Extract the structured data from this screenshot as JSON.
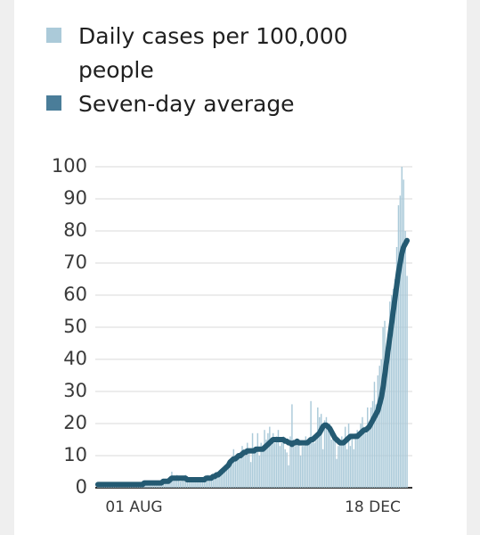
{
  "chart_data": {
    "type": "bar",
    "categories": [
      null,
      null,
      null,
      null,
      null,
      null,
      null,
      null,
      null,
      null,
      null,
      null,
      null,
      null,
      null,
      null,
      null,
      null,
      null,
      null,
      null,
      "01 AUG",
      null,
      null,
      null,
      null,
      null,
      null,
      null,
      null,
      null,
      null,
      null,
      null,
      null,
      null,
      null,
      null,
      null,
      null,
      null,
      null,
      null,
      null,
      null,
      null,
      null,
      null,
      null,
      null,
      null,
      null,
      null,
      null,
      null,
      null,
      null,
      null,
      null,
      null,
      null,
      null,
      null,
      null,
      null,
      null,
      null,
      null,
      null,
      null,
      null,
      null,
      null,
      null,
      null,
      null,
      null,
      null,
      null,
      null,
      null,
      null,
      null,
      null,
      null,
      null,
      null,
      null,
      null,
      null,
      null,
      null,
      null,
      null,
      null,
      null,
      null,
      null,
      null,
      null,
      null,
      null,
      null,
      null,
      null,
      null,
      null,
      null,
      null,
      null,
      null,
      null,
      null,
      null,
      null,
      null,
      null,
      null,
      null,
      null,
      null,
      null,
      null,
      null,
      null,
      null,
      null,
      null,
      null,
      null,
      null,
      null,
      null,
      null,
      null,
      null,
      null,
      null,
      null,
      null,
      null,
      null,
      null,
      null,
      null,
      null,
      null,
      null,
      null,
      null,
      null,
      null,
      null,
      null,
      null,
      null,
      null,
      null,
      null,
      null,
      "18 DEC",
      null,
      null,
      null,
      null,
      null,
      null,
      null,
      null,
      null,
      null,
      null,
      null,
      null,
      null,
      null,
      null,
      null,
      null,
      null,
      null
    ],
    "series": [
      {
        "name": "Daily cases per 100,000 people",
        "color": "#abcad9",
        "type": "bar",
        "values": [
          1,
          0.5,
          1,
          1,
          0.5,
          1,
          1,
          1,
          0.5,
          1,
          1,
          1,
          0.5,
          1,
          1,
          1,
          1,
          0.5,
          1,
          1,
          1,
          1,
          1,
          1,
          1,
          1,
          1,
          2,
          1.5,
          1,
          1.5,
          2,
          1.5,
          1,
          1.5,
          1.5,
          2,
          1.5,
          2,
          2.5,
          2,
          2,
          3,
          5,
          3,
          3,
          4,
          3,
          2,
          3,
          3,
          4,
          2,
          2,
          3,
          3,
          2,
          2,
          3,
          3,
          2,
          3,
          3,
          3,
          4,
          3,
          3,
          4,
          3,
          5,
          4,
          5,
          6,
          6,
          7,
          6,
          8,
          9,
          8,
          12,
          10,
          9,
          10,
          11,
          13,
          12,
          10,
          14,
          12,
          8,
          17,
          12,
          11,
          17,
          10,
          14,
          12,
          18,
          15,
          17,
          19,
          15,
          17,
          14,
          16,
          18,
          13,
          14,
          16,
          12,
          11,
          7,
          16,
          26,
          15,
          13,
          15,
          14,
          10,
          13,
          13,
          16,
          14,
          15,
          27,
          16,
          14,
          15,
          25,
          22,
          23,
          12,
          21,
          22,
          18,
          20,
          15,
          17,
          16,
          9,
          13,
          14,
          16,
          15,
          19,
          12,
          20,
          13,
          16,
          12,
          17,
          18,
          16,
          20,
          22,
          19,
          17,
          25,
          20,
          25,
          27,
          33,
          26,
          35,
          38,
          40,
          50,
          52,
          44,
          42,
          58,
          60,
          62,
          65,
          75,
          88,
          91,
          100,
          96,
          80,
          66
        ]
      },
      {
        "name": "Seven-day average",
        "color": "#245a72",
        "type": "line",
        "values": [
          1,
          1,
          1,
          1,
          1,
          1,
          1,
          1,
          1,
          1,
          1,
          1,
          1,
          1,
          1,
          1,
          1,
          1,
          1,
          1,
          1,
          1,
          1,
          1,
          1,
          1,
          1,
          1.5,
          1.5,
          1.5,
          1.5,
          1.5,
          1.5,
          1.5,
          1.5,
          1.5,
          1.5,
          1.5,
          2,
          2,
          2,
          2,
          2.5,
          3,
          3,
          3,
          3,
          3,
          3,
          3,
          3,
          3,
          2.5,
          2.5,
          2.5,
          2.5,
          2.5,
          2.5,
          2.5,
          2.5,
          2.5,
          2.5,
          2.5,
          3,
          3,
          3,
          3,
          3.5,
          3.5,
          4,
          4,
          4.5,
          5,
          5.5,
          6,
          6.5,
          7,
          8,
          8.5,
          9,
          9,
          9.5,
          10,
          10,
          10.5,
          11,
          11,
          11.5,
          11.5,
          11.5,
          11.5,
          11.5,
          12,
          12,
          12,
          12,
          12,
          12.5,
          13,
          13.5,
          14,
          14.5,
          15,
          15,
          15,
          15,
          15,
          15,
          15,
          14.5,
          14.5,
          14,
          14,
          13.5,
          14,
          14,
          14.5,
          14,
          14,
          14,
          14,
          14,
          14,
          14.5,
          15,
          15,
          15.5,
          16,
          16.5,
          17,
          18,
          19,
          19.5,
          19.5,
          19,
          18.5,
          17.5,
          16.5,
          15.5,
          15,
          14.5,
          14,
          14,
          14,
          14.5,
          15,
          15.5,
          16,
          16,
          16,
          16,
          16,
          16.5,
          17,
          17.5,
          18,
          18,
          18.5,
          19,
          20,
          21,
          22,
          23,
          24,
          26,
          28,
          31,
          35,
          39,
          43,
          47,
          51,
          55,
          59,
          63,
          67,
          70,
          73,
          75,
          76,
          77
        ]
      }
    ],
    "ylim": [
      0,
      100
    ],
    "yticks": [
      0,
      10,
      20,
      30,
      40,
      50,
      60,
      70,
      80,
      90,
      100
    ],
    "grid": true
  }
}
